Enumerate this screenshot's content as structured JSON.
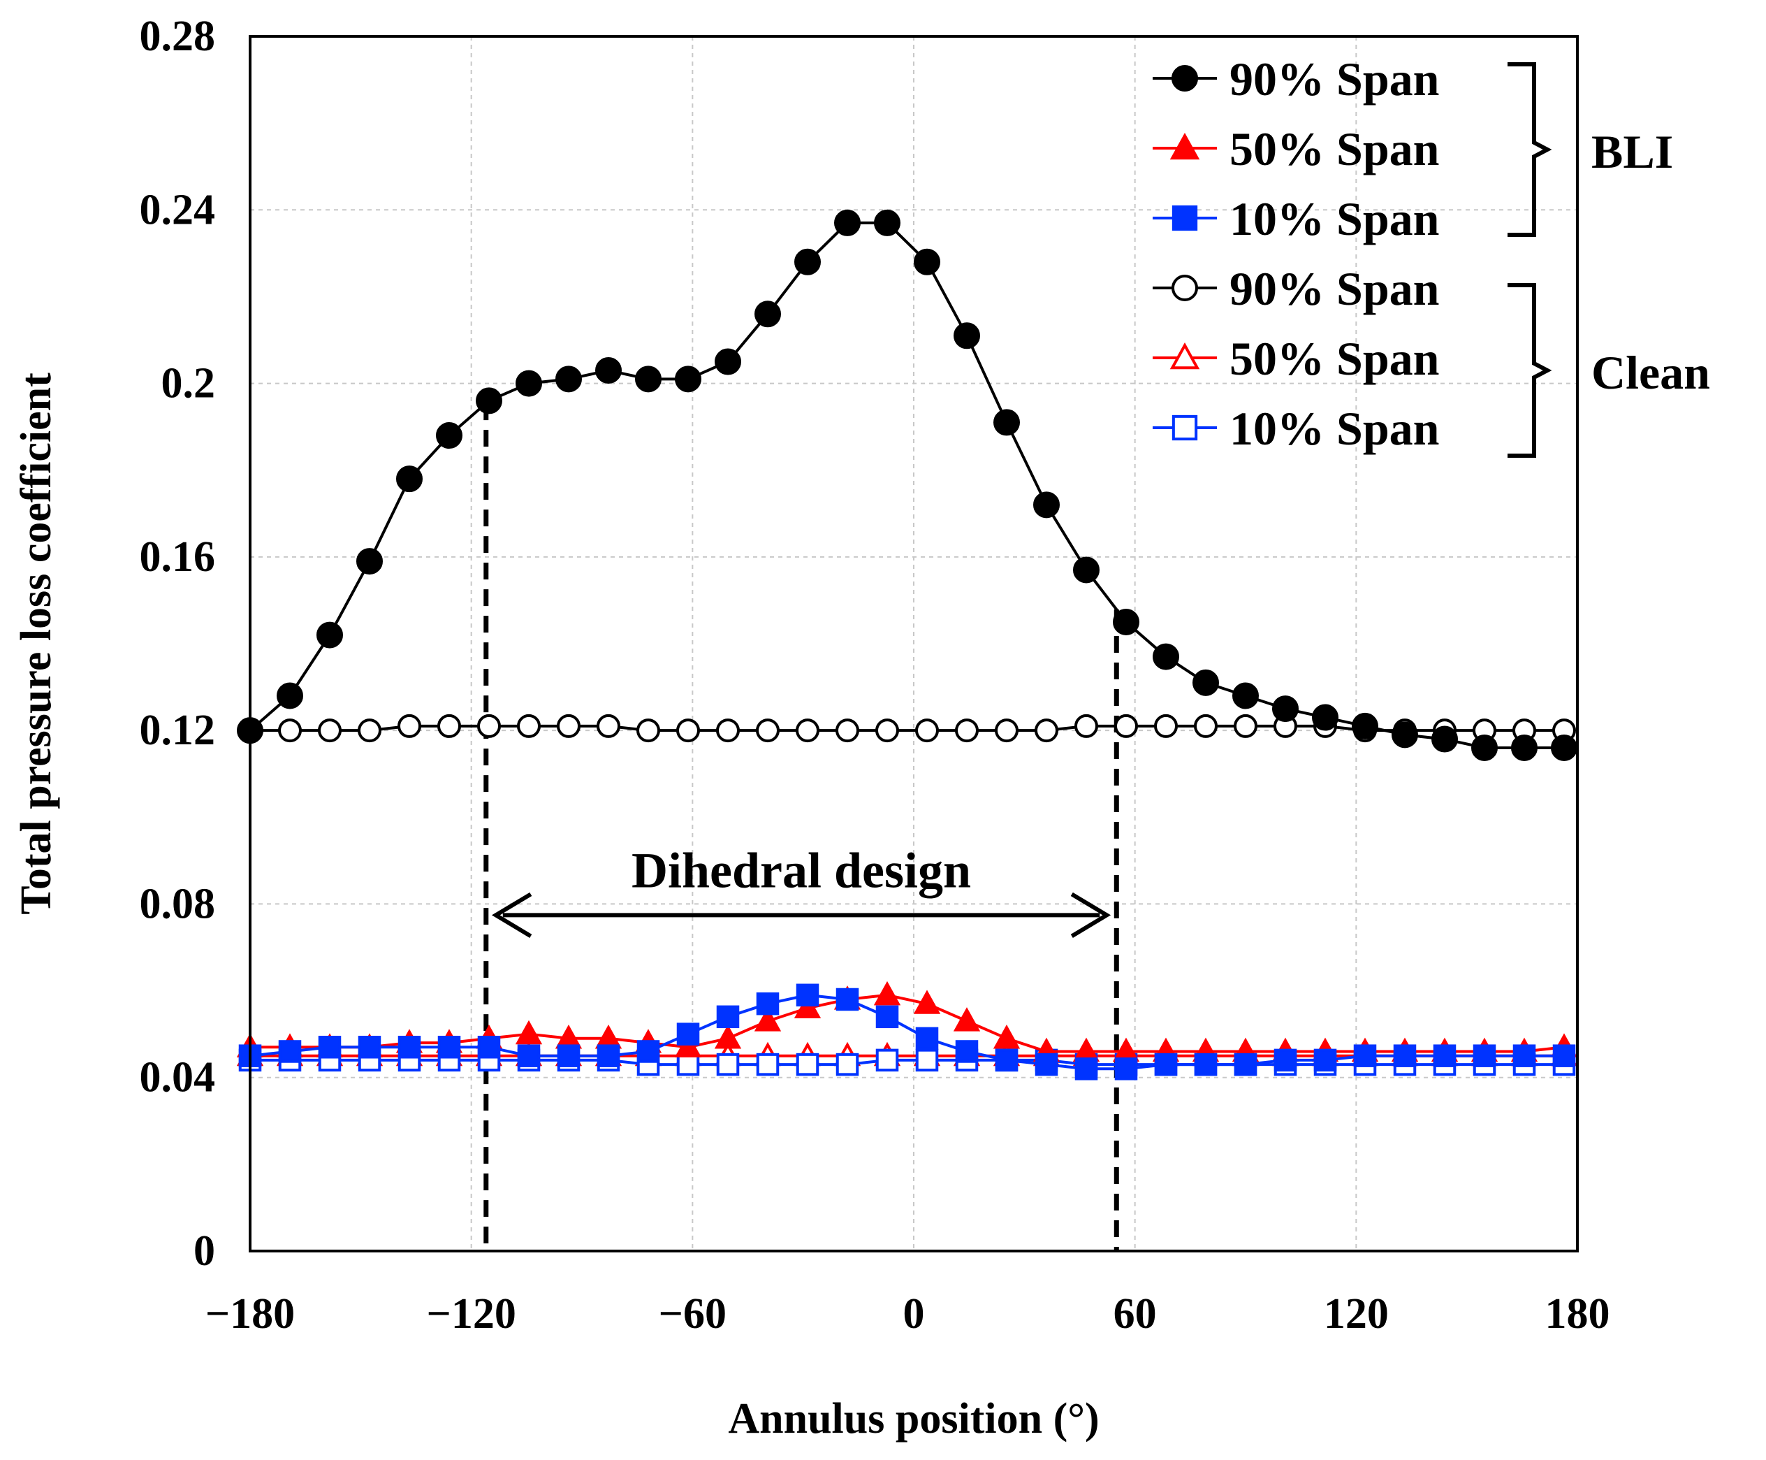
{
  "chart_data": {
    "type": "line",
    "title": "",
    "xlabel": "Annulus position (°)",
    "ylabel": "Total pressure loss coefficient",
    "xlim": [
      -180,
      180
    ],
    "ylim": [
      0,
      0.28
    ],
    "x_ticks": [
      -180,
      -120,
      -60,
      0,
      60,
      120,
      180
    ],
    "x_tick_labels": [
      "−180",
      "−120",
      "−60",
      "0",
      "60",
      "120",
      "180"
    ],
    "y_ticks": [
      0,
      0.04,
      0.08,
      0.12,
      0.16,
      0.2,
      0.24,
      0.28
    ],
    "y_tick_labels": [
      "0",
      "0.04",
      "0.08",
      "0.12",
      "0.16",
      "0.2",
      "0.24",
      "0.28"
    ],
    "grid": "horizontal-dashed",
    "x": [
      -180,
      -169.2,
      -158.4,
      -147.6,
      -136.8,
      -126,
      -115.2,
      -104.4,
      -93.6,
      -82.8,
      -72,
      -61.2,
      -50.4,
      -39.6,
      -28.8,
      -18,
      -7.2,
      3.6,
      14.4,
      25.2,
      36,
      46.8,
      57.6,
      68.4,
      79.2,
      90,
      100.8,
      111.6,
      122.4,
      133.2,
      144,
      154.8,
      165.6,
      176.4
    ],
    "series": [
      {
        "name": "90% Span",
        "group": "BLI",
        "color": "#000000",
        "marker": "circle",
        "filled": true,
        "values": [
          0.12,
          0.128,
          0.142,
          0.159,
          0.178,
          0.188,
          0.196,
          0.2,
          0.201,
          0.203,
          0.201,
          0.201,
          0.205,
          0.216,
          0.228,
          0.237,
          0.237,
          0.228,
          0.211,
          0.191,
          0.172,
          0.157,
          0.145,
          0.137,
          0.131,
          0.128,
          0.125,
          0.123,
          0.121,
          0.119,
          0.118,
          0.116,
          0.116,
          0.116
        ]
      },
      {
        "name": "50% Span",
        "group": "BLI",
        "color": "#ff0000",
        "marker": "triangle",
        "filled": true,
        "values": [
          0.047,
          0.047,
          0.047,
          0.047,
          0.048,
          0.048,
          0.049,
          0.05,
          0.049,
          0.049,
          0.048,
          0.047,
          0.049,
          0.053,
          0.056,
          0.058,
          0.059,
          0.057,
          0.053,
          0.049,
          0.046,
          0.046,
          0.046,
          0.046,
          0.046,
          0.046,
          0.046,
          0.046,
          0.046,
          0.046,
          0.046,
          0.046,
          0.046,
          0.047
        ]
      },
      {
        "name": "10% Span",
        "group": "BLI",
        "color": "#0033ff",
        "marker": "square",
        "filled": true,
        "values": [
          0.045,
          0.046,
          0.047,
          0.047,
          0.047,
          0.047,
          0.047,
          0.045,
          0.045,
          0.045,
          0.046,
          0.05,
          0.054,
          0.057,
          0.059,
          0.058,
          0.054,
          0.049,
          0.046,
          0.044,
          0.043,
          0.042,
          0.042,
          0.043,
          0.043,
          0.043,
          0.044,
          0.044,
          0.045,
          0.045,
          0.045,
          0.045,
          0.045,
          0.045
        ]
      },
      {
        "name": "90% Span",
        "group": "Clean",
        "color": "#000000",
        "marker": "circle",
        "filled": false,
        "values": [
          0.12,
          0.12,
          0.12,
          0.12,
          0.121,
          0.121,
          0.121,
          0.121,
          0.121,
          0.121,
          0.12,
          0.12,
          0.12,
          0.12,
          0.12,
          0.12,
          0.12,
          0.12,
          0.12,
          0.12,
          0.12,
          0.121,
          0.121,
          0.121,
          0.121,
          0.121,
          0.121,
          0.121,
          0.12,
          0.12,
          0.12,
          0.12,
          0.12,
          0.12
        ]
      },
      {
        "name": "50% Span",
        "group": "Clean",
        "color": "#ff0000",
        "marker": "triangle",
        "filled": false,
        "values": [
          0.045,
          0.045,
          0.045,
          0.045,
          0.045,
          0.045,
          0.045,
          0.045,
          0.045,
          0.045,
          0.045,
          0.045,
          0.045,
          0.045,
          0.045,
          0.045,
          0.045,
          0.045,
          0.045,
          0.045,
          0.045,
          0.045,
          0.045,
          0.045,
          0.045,
          0.045,
          0.045,
          0.045,
          0.045,
          0.045,
          0.045,
          0.045,
          0.045,
          0.045
        ]
      },
      {
        "name": "10% Span",
        "group": "Clean",
        "color": "#0033ff",
        "marker": "square",
        "filled": false,
        "values": [
          0.044,
          0.044,
          0.044,
          0.044,
          0.044,
          0.044,
          0.044,
          0.044,
          0.044,
          0.044,
          0.043,
          0.043,
          0.043,
          0.043,
          0.043,
          0.043,
          0.044,
          0.044,
          0.044,
          0.044,
          0.044,
          0.043,
          0.043,
          0.043,
          0.043,
          0.043,
          0.043,
          0.043,
          0.043,
          0.043,
          0.043,
          0.043,
          0.043,
          0.043
        ]
      }
    ],
    "legend_position": "top-right",
    "legend_groups": [
      "BLI",
      "Clean"
    ],
    "annotations": [
      {
        "text": "Dihedral design",
        "x_range": [
          -116,
          55
        ],
        "arrow": "double"
      }
    ],
    "vertical_dashed_lines": [
      -116,
      55
    ]
  }
}
